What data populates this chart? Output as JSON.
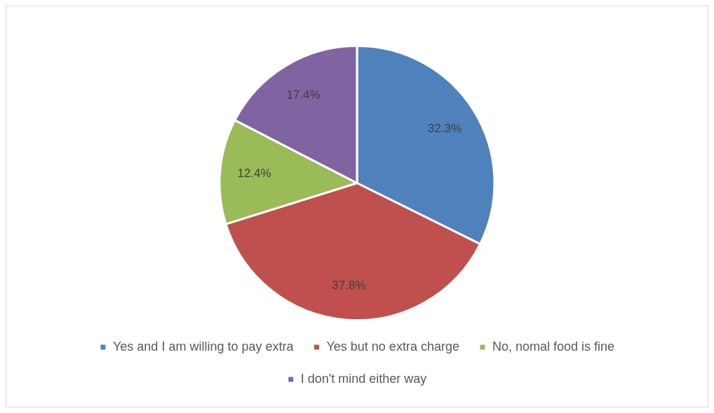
{
  "chart_data": {
    "type": "pie",
    "categories": [
      "Yes and I am willing to pay extra",
      "Yes but no extra charge",
      "No, nomal food is fine",
      "I don't mind either way"
    ],
    "values": [
      32.3,
      37.8,
      12.4,
      17.4
    ],
    "colors": [
      "#4f81bd",
      "#c0504d",
      "#9bbb59",
      "#8064a2"
    ],
    "value_labels": [
      "32.3%",
      "37.8%",
      "12.4%",
      "17.4%"
    ],
    "legend": "bottom"
  }
}
